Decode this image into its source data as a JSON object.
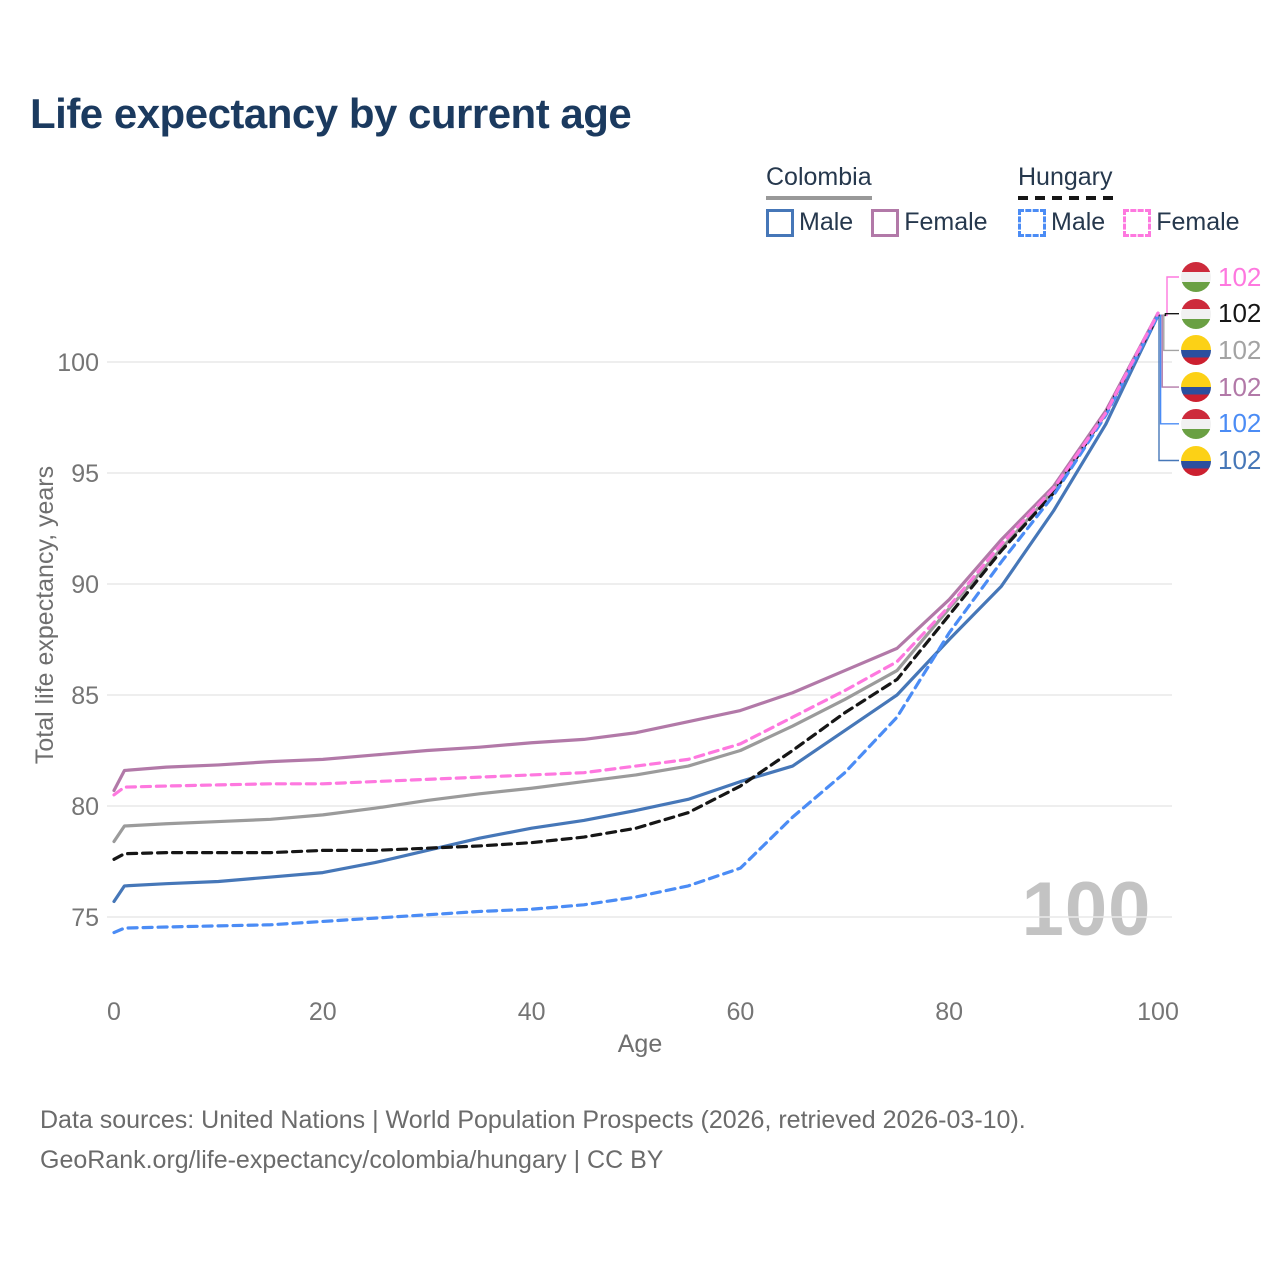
{
  "title": "Life expectancy by current age",
  "legend": {
    "groups": [
      {
        "label": "Colombia",
        "line_style": "solid",
        "line_color": "#999999",
        "items": [
          {
            "label": "Male",
            "color": "#4677b8",
            "dashed": false
          },
          {
            "label": "Female",
            "color": "#b279a8",
            "dashed": false
          }
        ]
      },
      {
        "label": "Hungary",
        "line_style": "dashed",
        "line_color": "#161616",
        "items": [
          {
            "label": "Male",
            "color": "#4b8cf5",
            "dashed": true
          },
          {
            "label": "Female",
            "color": "#fe78df",
            "dashed": true
          }
        ]
      }
    ]
  },
  "watermark": "100",
  "chart_data": {
    "type": "line",
    "title": "Life expectancy by current age",
    "xlabel": "Age",
    "ylabel": "Total life expectancy, years",
    "xlim": [
      0,
      100
    ],
    "ylim": [
      72.5,
      103.5
    ],
    "xticks": [
      0,
      20,
      40,
      60,
      80,
      100
    ],
    "yticks": [
      75,
      80,
      85,
      90,
      95,
      100
    ],
    "grid": "horizontal",
    "legend_position": "top-right",
    "x": [
      0,
      1,
      5,
      10,
      15,
      20,
      25,
      30,
      35,
      40,
      45,
      50,
      55,
      60,
      65,
      70,
      75,
      80,
      85,
      90,
      95,
      100
    ],
    "series": [
      {
        "name": "Colombia",
        "country": "Colombia",
        "sex": "both",
        "color": "#9b9b9b",
        "dashed": false,
        "values": [
          78.4,
          79.1,
          79.2,
          79.3,
          79.4,
          79.6,
          79.9,
          80.25,
          80.55,
          80.8,
          81.1,
          81.4,
          81.8,
          82.5,
          83.6,
          84.8,
          86.1,
          88.9,
          91.6,
          94.2,
          97.7,
          102.1
        ]
      },
      {
        "name": "Colombia Female",
        "country": "Colombia",
        "sex": "female",
        "color": "#b279a8",
        "dashed": false,
        "values": [
          80.7,
          81.6,
          81.75,
          81.85,
          82.0,
          82.1,
          82.3,
          82.5,
          82.65,
          82.85,
          83.0,
          83.3,
          83.8,
          84.3,
          85.1,
          86.1,
          87.1,
          89.3,
          92.0,
          94.4,
          97.8,
          102.2
        ]
      },
      {
        "name": "Colombia Male",
        "country": "Colombia",
        "sex": "male",
        "color": "#4677b8",
        "dashed": false,
        "values": [
          75.7,
          76.4,
          76.5,
          76.6,
          76.8,
          77.0,
          77.45,
          78.0,
          78.55,
          79.0,
          79.35,
          79.8,
          80.3,
          81.1,
          81.8,
          83.4,
          85.0,
          87.5,
          89.9,
          93.3,
          97.2,
          102.1
        ]
      },
      {
        "name": "Hungary",
        "country": "Hungary",
        "sex": "both",
        "color": "#161616",
        "dashed": true,
        "values": [
          77.6,
          77.85,
          77.9,
          77.9,
          77.9,
          78.0,
          78.0,
          78.1,
          78.2,
          78.35,
          78.6,
          79.0,
          79.7,
          80.9,
          82.5,
          84.2,
          85.7,
          88.6,
          91.5,
          94.1,
          97.7,
          102.1
        ]
      },
      {
        "name": "Hungary Male",
        "country": "Hungary",
        "sex": "male",
        "color": "#4b8cf5",
        "dashed": true,
        "values": [
          74.3,
          74.5,
          74.55,
          74.6,
          74.65,
          74.8,
          74.95,
          75.1,
          75.25,
          75.35,
          75.55,
          75.9,
          76.4,
          77.2,
          79.5,
          81.5,
          84.0,
          87.8,
          91.0,
          94.0,
          97.6,
          102.1
        ]
      },
      {
        "name": "Hungary Female",
        "country": "Hungary",
        "sex": "female",
        "color": "#fe78df",
        "dashed": true,
        "values": [
          80.5,
          80.85,
          80.9,
          80.95,
          81.0,
          81.0,
          81.1,
          81.2,
          81.3,
          81.4,
          81.5,
          81.8,
          82.1,
          82.8,
          84.0,
          85.2,
          86.5,
          89.0,
          91.8,
          94.3,
          97.7,
          102.2
        ]
      }
    ],
    "end_labels": [
      {
        "series": "Hungary Female",
        "value": "102",
        "flag": "hungary",
        "color": "#fe78df"
      },
      {
        "series": "Hungary",
        "value": "102",
        "flag": "hungary",
        "color": "#161616"
      },
      {
        "series": "Colombia",
        "value": "102",
        "flag": "colombia",
        "color": "#a3a3a3"
      },
      {
        "series": "Colombia Female",
        "value": "102",
        "flag": "colombia",
        "color": "#b279a8"
      },
      {
        "series": "Hungary Male",
        "value": "102",
        "flag": "hungary",
        "color": "#4b8cf5"
      },
      {
        "series": "Colombia Male",
        "value": "102",
        "flag": "colombia",
        "color": "#4677b8"
      }
    ]
  },
  "flags": {
    "hungary": {
      "colors": [
        "#cd2b3c",
        "#f1f1f1",
        "#6aa043"
      ],
      "stops": [
        34,
        66
      ]
    },
    "colombia": {
      "colors": [
        "#fcd116",
        "#2b4f9e",
        "#cc2030"
      ],
      "stops": [
        50,
        75
      ]
    }
  },
  "footer": {
    "line1": "Data sources: United Nations | World Population Prospects (2026, retrieved 2026-03-10).",
    "line2": "GeoRank.org/life-expectancy/colombia/hungary | CC BY"
  }
}
